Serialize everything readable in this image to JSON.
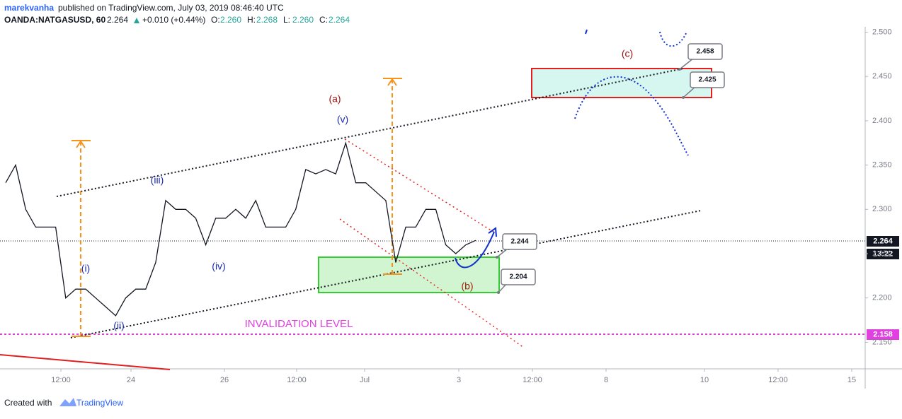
{
  "header": {
    "author": "marekvanha",
    "published": "published on TradingView.com, July 03, 2019 08:46:40 UTC",
    "symbol": "OANDA:NATGASUSD, 60",
    "price": "2.264",
    "change": "+0.010 (+0.44%)",
    "ohlc": [
      {
        "label": "O:",
        "value": "2.260"
      },
      {
        "label": "H:",
        "value": "2.268"
      },
      {
        "label": "L:",
        "value": "2.260"
      },
      {
        "label": "C:",
        "value": "2.264"
      }
    ]
  },
  "chart_data": {
    "type": "line",
    "color": "#131722",
    "values": [
      2.33,
      2.35,
      2.3,
      2.28,
      2.28,
      2.28,
      2.2,
      2.21,
      2.21,
      2.2,
      2.19,
      2.18,
      2.2,
      2.21,
      2.21,
      2.24,
      2.31,
      2.3,
      2.3,
      2.29,
      2.26,
      2.29,
      2.29,
      2.3,
      2.29,
      2.31,
      2.28,
      2.28,
      2.28,
      2.3,
      2.345,
      2.34,
      2.345,
      2.34,
      2.375,
      2.33,
      2.33,
      2.32,
      2.31,
      2.24,
      2.28,
      2.28,
      2.3,
      2.3,
      2.26,
      2.25,
      2.26,
      2.265
    ],
    "ylim": [
      2.12,
      2.506
    ],
    "yticks": [
      {
        "value": 2.15,
        "label": "2.150"
      },
      {
        "value": 2.2,
        "label": "2.200"
      },
      {
        "value": 2.25,
        "label": "2.250"
      },
      {
        "value": 2.3,
        "label": "2.300"
      },
      {
        "value": 2.35,
        "label": "2.350"
      },
      {
        "value": 2.4,
        "label": "2.400"
      },
      {
        "value": 2.45,
        "label": "2.450"
      },
      {
        "value": 2.5,
        "label": "2.500"
      }
    ],
    "grid": false,
    "x_labels": [
      "12:00",
      "24",
      "26",
      "12:00",
      "Jul",
      "3",
      "12:00",
      "8",
      "10",
      "12:00",
      "15"
    ],
    "last_price": 2.264,
    "countdown": "13:22",
    "invalidation_price": 2.158,
    "annotations": {
      "a": "(a)",
      "v": "(v)",
      "iii": "(iii)",
      "i": "(i)",
      "ii": "(ii)",
      "iv": "(iv)",
      "b": "(b)",
      "c": "(c)",
      "invalidation": "INVALIDATION LEVEL"
    },
    "callouts": [
      2.458,
      2.425,
      2.244,
      2.204
    ]
  },
  "footer": {
    "created": "Created with",
    "brand": "TradingView"
  }
}
